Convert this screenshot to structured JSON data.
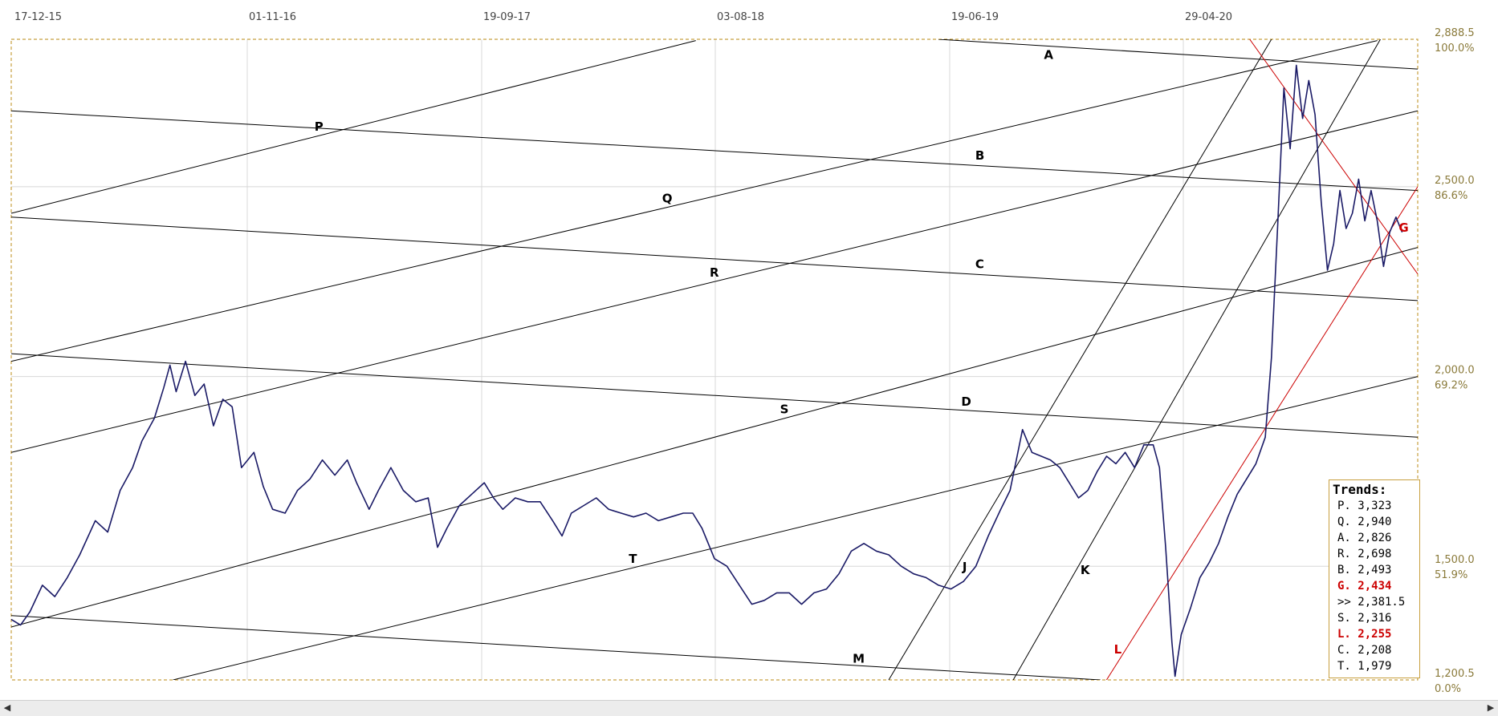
{
  "chart_data": {
    "type": "line",
    "x_tick_labels": [
      "17-12-15",
      "01-11-16",
      "19-09-17",
      "03-08-18",
      "19-06-19",
      "29-04-20"
    ],
    "y_axis": {
      "min": 1200.5,
      "max": 2888.5,
      "ticks": [
        {
          "value": 2888.5,
          "label": "2,888.5",
          "pct": "100.0%"
        },
        {
          "value": 2500.0,
          "label": "2,500.0",
          "pct": "86.6%"
        },
        {
          "value": 2000.0,
          "label": "2,000.0",
          "pct": "69.2%"
        },
        {
          "value": 1500.0,
          "label": "1,500.0",
          "pct": "51.9%"
        },
        {
          "value": 1200.5,
          "label": "1,200.5",
          "pct": "0.0%"
        }
      ]
    },
    "grid": true,
    "series": [
      {
        "color": "#1a1a66",
        "points": [
          [
            0,
            1360
          ],
          [
            3,
            1345
          ],
          [
            6,
            1380
          ],
          [
            10,
            1450
          ],
          [
            14,
            1420
          ],
          [
            18,
            1470
          ],
          [
            22,
            1530
          ],
          [
            27,
            1620
          ],
          [
            31,
            1590
          ],
          [
            35,
            1700
          ],
          [
            39,
            1760
          ],
          [
            42,
            1830
          ],
          [
            46,
            1890
          ],
          [
            49,
            1970
          ],
          [
            51,
            2030
          ],
          [
            53,
            1960
          ],
          [
            56,
            2040
          ],
          [
            59,
            1950
          ],
          [
            62,
            1980
          ],
          [
            65,
            1870
          ],
          [
            68,
            1940
          ],
          [
            71,
            1920
          ],
          [
            74,
            1760
          ],
          [
            78,
            1800
          ],
          [
            81,
            1710
          ],
          [
            84,
            1650
          ],
          [
            88,
            1640
          ],
          [
            92,
            1700
          ],
          [
            96,
            1730
          ],
          [
            100,
            1780
          ],
          [
            104,
            1740
          ],
          [
            108,
            1780
          ],
          [
            111,
            1720
          ],
          [
            115,
            1650
          ],
          [
            118,
            1700
          ],
          [
            122,
            1760
          ],
          [
            126,
            1700
          ],
          [
            130,
            1670
          ],
          [
            134,
            1680
          ],
          [
            137,
            1550
          ],
          [
            140,
            1600
          ],
          [
            144,
            1660
          ],
          [
            148,
            1690
          ],
          [
            152,
            1720
          ],
          [
            155,
            1680
          ],
          [
            158,
            1650
          ],
          [
            162,
            1680
          ],
          [
            166,
            1670
          ],
          [
            170,
            1670
          ],
          [
            174,
            1620
          ],
          [
            177,
            1580
          ],
          [
            180,
            1640
          ],
          [
            184,
            1660
          ],
          [
            188,
            1680
          ],
          [
            192,
            1650
          ],
          [
            196,
            1640
          ],
          [
            200,
            1630
          ],
          [
            204,
            1640
          ],
          [
            208,
            1620
          ],
          [
            212,
            1630
          ],
          [
            216,
            1640
          ],
          [
            219,
            1640
          ],
          [
            222,
            1600
          ],
          [
            226,
            1520
          ],
          [
            230,
            1500
          ],
          [
            234,
            1450
          ],
          [
            238,
            1400
          ],
          [
            242,
            1410
          ],
          [
            246,
            1430
          ],
          [
            250,
            1430
          ],
          [
            254,
            1400
          ],
          [
            258,
            1430
          ],
          [
            262,
            1440
          ],
          [
            266,
            1480
          ],
          [
            270,
            1540
          ],
          [
            274,
            1560
          ],
          [
            278,
            1540
          ],
          [
            282,
            1530
          ],
          [
            286,
            1500
          ],
          [
            290,
            1480
          ],
          [
            294,
            1470
          ],
          [
            298,
            1450
          ],
          [
            302,
            1440
          ],
          [
            306,
            1460
          ],
          [
            310,
            1500
          ],
          [
            314,
            1580
          ],
          [
            318,
            1650
          ],
          [
            321,
            1700
          ],
          [
            323,
            1780
          ],
          [
            325,
            1860
          ],
          [
            328,
            1800
          ],
          [
            331,
            1790
          ],
          [
            334,
            1780
          ],
          [
            337,
            1760
          ],
          [
            340,
            1720
          ],
          [
            343,
            1680
          ],
          [
            346,
            1700
          ],
          [
            349,
            1750
          ],
          [
            352,
            1790
          ],
          [
            355,
            1770
          ],
          [
            358,
            1800
          ],
          [
            361,
            1760
          ],
          [
            364,
            1820
          ],
          [
            367,
            1820
          ],
          [
            369,
            1760
          ],
          [
            371,
            1550
          ],
          [
            373,
            1300
          ],
          [
            374,
            1210
          ],
          [
            376,
            1320
          ],
          [
            379,
            1390
          ],
          [
            382,
            1470
          ],
          [
            385,
            1510
          ],
          [
            388,
            1560
          ],
          [
            391,
            1630
          ],
          [
            394,
            1690
          ],
          [
            397,
            1730
          ],
          [
            400,
            1770
          ],
          [
            403,
            1840
          ],
          [
            405,
            2050
          ],
          [
            407,
            2400
          ],
          [
            409,
            2760
          ],
          [
            411,
            2600
          ],
          [
            413,
            2820
          ],
          [
            415,
            2680
          ],
          [
            417,
            2780
          ],
          [
            419,
            2690
          ],
          [
            421,
            2460
          ],
          [
            423,
            2280
          ],
          [
            425,
            2350
          ],
          [
            427,
            2490
          ],
          [
            429,
            2390
          ],
          [
            431,
            2430
          ],
          [
            433,
            2520
          ],
          [
            435,
            2410
          ],
          [
            437,
            2490
          ],
          [
            439,
            2410
          ],
          [
            441,
            2290
          ],
          [
            443,
            2380
          ],
          [
            445,
            2420
          ],
          [
            447,
            2380
          ]
        ]
      }
    ],
    "trendlines": [
      {
        "name": "P",
        "color": "#000000",
        "from": [
          0,
          2430
        ],
        "to": [
          220,
          2885
        ]
      },
      {
        "name": "Q",
        "color": "#000000",
        "from": [
          0,
          2040
        ],
        "to": [
          439,
          2885
        ]
      },
      {
        "name": "R",
        "color": "#000000",
        "from": [
          0,
          1800
        ],
        "to": [
          452,
          2700
        ]
      },
      {
        "name": "S",
        "color": "#000000",
        "from": [
          0,
          1340
        ],
        "to": [
          452,
          2340
        ]
      },
      {
        "name": "T",
        "color": "#000000",
        "from": [
          52,
          1200.5
        ],
        "to": [
          452,
          2000
        ]
      },
      {
        "name": "A",
        "color": "#000000",
        "from": [
          298,
          2888.5
        ],
        "to": [
          452,
          2810
        ]
      },
      {
        "name": "B",
        "color": "#000000",
        "from": [
          0,
          2700
        ],
        "to": [
          452,
          2490
        ]
      },
      {
        "name": "C",
        "color": "#000000",
        "from": [
          0,
          2420
        ],
        "to": [
          452,
          2200
        ]
      },
      {
        "name": "D",
        "color": "#000000",
        "from": [
          0,
          2060
        ],
        "to": [
          452,
          1840
        ]
      },
      {
        "name": "M",
        "color": "#000000",
        "from": [
          0,
          1370
        ],
        "to": [
          350,
          1200.5
        ]
      },
      {
        "name": "J",
        "color": "#000000",
        "from": [
          282,
          1200.5
        ],
        "to": [
          405,
          2888.5
        ]
      },
      {
        "name": "K",
        "color": "#000000",
        "from": [
          322,
          1200.5
        ],
        "to": [
          440,
          2888.5
        ]
      },
      {
        "name": "L",
        "color": "#cc0000",
        "from": [
          352,
          1200.5
        ],
        "to": [
          452,
          2500
        ]
      },
      {
        "name": "G",
        "color": "#cc0000",
        "from": [
          398,
          2888.5
        ],
        "to": [
          452,
          2270
        ]
      }
    ],
    "trends_legend": {
      "title": "Trends:",
      "entries": [
        {
          "label": "P. 3,323",
          "color": "#000000"
        },
        {
          "label": "Q. 2,940",
          "color": "#000000"
        },
        {
          "label": "A. 2,826",
          "color": "#000000"
        },
        {
          "label": "R. 2,698",
          "color": "#000000"
        },
        {
          "label": "B. 2,493",
          "color": "#000000"
        },
        {
          "label": "G. 2,434",
          "color": "#cc0000"
        },
        {
          "label": ">> 2,381.5",
          "color": "#000000"
        },
        {
          "label": "S. 2,316",
          "color": "#000000"
        },
        {
          "label": "L. 2,255",
          "color": "#cc0000"
        },
        {
          "label": "C. 2,208",
          "color": "#000000"
        },
        {
          "label": "T. 1,979",
          "color": "#000000"
        }
      ]
    }
  },
  "scrollbar": {
    "left_icon": "arrow-left-icon",
    "right_icon": "arrow-right-icon"
  }
}
